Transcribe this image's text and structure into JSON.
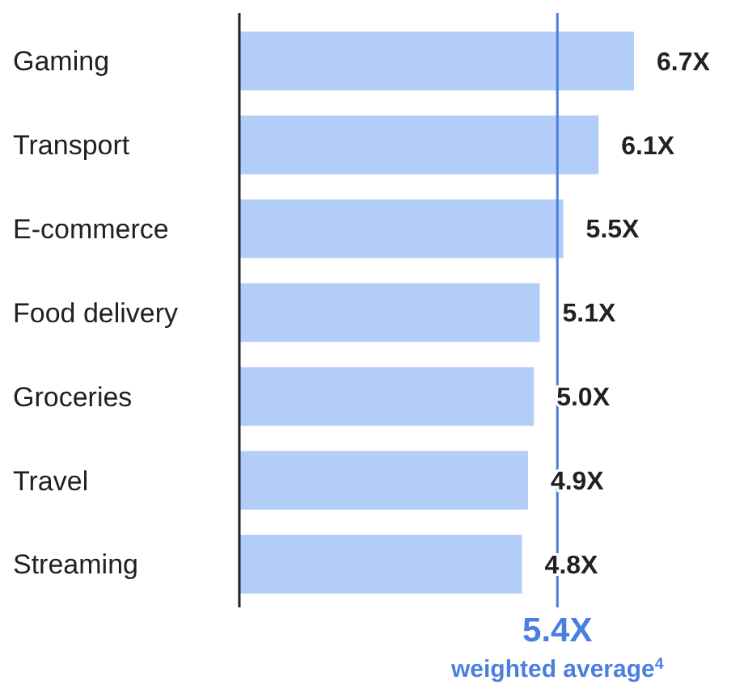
{
  "chart_data": {
    "type": "bar",
    "orientation": "horizontal",
    "categories": [
      "Gaming",
      "Transport",
      "E-commerce",
      "Food delivery",
      "Groceries",
      "Travel",
      "Streaming"
    ],
    "values": [
      6.7,
      6.1,
      5.5,
      5.1,
      5.0,
      4.9,
      4.8
    ],
    "value_labels": [
      "6.7X",
      "6.1X",
      "5.5X",
      "5.1X",
      "5.0X",
      "4.9X",
      "4.8X"
    ],
    "color": "#b3cdf9",
    "ref_lines": [
      {
        "axis": "x",
        "value": 5.4,
        "label": "5.4X",
        "color": "#4a7fe0"
      }
    ],
    "annotations": [
      "weighted average$^{4}$"
    ]
  }
}
